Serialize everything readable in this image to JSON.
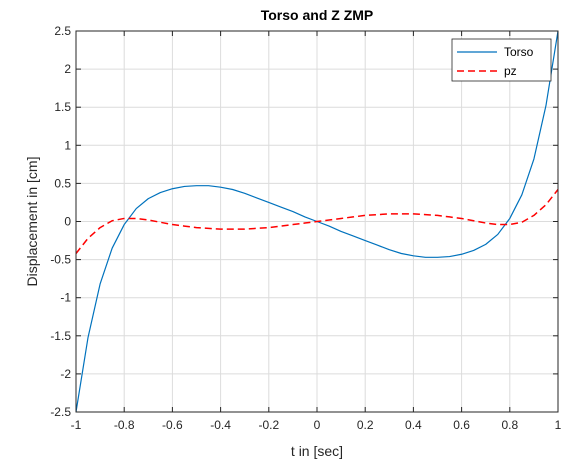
{
  "chart_data": {
    "type": "line",
    "title": "Torso and Z ZMP",
    "xlabel": "t in [sec]",
    "ylabel": "Displacement in [cm]",
    "xlim": [
      -1,
      1
    ],
    "ylim": [
      -2.5,
      2.5
    ],
    "xticks": [
      -1,
      -0.8,
      -0.6,
      -0.4,
      -0.2,
      0,
      0.2,
      0.4,
      0.6,
      0.8,
      1
    ],
    "xtick_labels": [
      "-1",
      "-0.8",
      "-0.6",
      "-0.4",
      "-0.2",
      "0",
      "0.2",
      "0.4",
      "0.6",
      "0.8",
      "1"
    ],
    "yticks": [
      -2.5,
      -2,
      -1.5,
      -1,
      -0.5,
      0,
      0.5,
      1,
      1.5,
      2,
      2.5
    ],
    "ytick_labels": [
      "-2.5",
      "-2",
      "-1.5",
      "-1",
      "-0.5",
      "0",
      "0.5",
      "1",
      "1.5",
      "2",
      "2.5"
    ],
    "grid": true,
    "legend_position": "top-right",
    "series": [
      {
        "name": "Torso",
        "color": "#0072BD",
        "style": "solid",
        "x": [
          -1,
          -0.95,
          -0.9,
          -0.85,
          -0.8,
          -0.75,
          -0.7,
          -0.65,
          -0.6,
          -0.55,
          -0.5,
          -0.45,
          -0.4,
          -0.35,
          -0.3,
          -0.25,
          -0.2,
          -0.15,
          -0.1,
          -0.05,
          0,
          0.05,
          0.1,
          0.15,
          0.2,
          0.25,
          0.3,
          0.35,
          0.4,
          0.45,
          0.5,
          0.55,
          0.6,
          0.65,
          0.7,
          0.75,
          0.8,
          0.85,
          0.9,
          0.95,
          1
        ],
        "values": [
          -2.5,
          -1.52,
          -0.82,
          -0.35,
          -0.04,
          0.17,
          0.3,
          0.38,
          0.43,
          0.46,
          0.47,
          0.47,
          0.45,
          0.42,
          0.37,
          0.31,
          0.25,
          0.19,
          0.13,
          0.06,
          0,
          -0.06,
          -0.13,
          -0.19,
          -0.25,
          -0.31,
          -0.37,
          -0.42,
          -0.45,
          -0.47,
          -0.47,
          -0.46,
          -0.43,
          -0.38,
          -0.3,
          -0.17,
          0.04,
          0.35,
          0.82,
          1.52,
          2.5
        ]
      },
      {
        "name": "pz",
        "color": "#FF0000",
        "style": "dashed",
        "x": [
          -1,
          -0.95,
          -0.9,
          -0.85,
          -0.8,
          -0.75,
          -0.7,
          -0.65,
          -0.6,
          -0.55,
          -0.5,
          -0.45,
          -0.4,
          -0.35,
          -0.3,
          -0.25,
          -0.2,
          -0.15,
          -0.1,
          -0.05,
          0,
          0.05,
          0.1,
          0.15,
          0.2,
          0.25,
          0.3,
          0.35,
          0.4,
          0.45,
          0.5,
          0.55,
          0.6,
          0.65,
          0.7,
          0.75,
          0.8,
          0.85,
          0.9,
          0.95,
          1
        ],
        "values": [
          -0.42,
          -0.22,
          -0.08,
          0.01,
          0.04,
          0.04,
          0.02,
          -0.01,
          -0.04,
          -0.06,
          -0.08,
          -0.09,
          -0.1,
          -0.1,
          -0.1,
          -0.09,
          -0.08,
          -0.06,
          -0.04,
          -0.02,
          0,
          0.02,
          0.04,
          0.06,
          0.08,
          0.09,
          0.1,
          0.1,
          0.1,
          0.09,
          0.08,
          0.06,
          0.04,
          0.01,
          -0.02,
          -0.04,
          -0.04,
          -0.01,
          0.08,
          0.22,
          0.42
        ]
      }
    ]
  }
}
